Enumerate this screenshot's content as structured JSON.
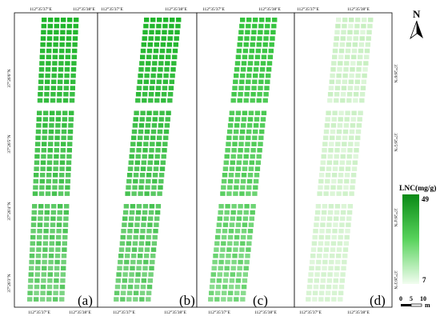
{
  "panels": [
    {
      "label": "(a)",
      "tone": "dark"
    },
    {
      "label": "(b)",
      "tone": "dark"
    },
    {
      "label": "(c)",
      "tone": "mid"
    },
    {
      "label": "(d)",
      "tone": "light"
    }
  ],
  "coords": {
    "lon_left": "112°35'37\"E",
    "lon_right": "112°35'38\"E",
    "lat_labels": [
      "37°26'6\"N",
      "37°26'5\"N",
      "37°26'4\"N",
      "37°26'3\"N"
    ]
  },
  "legend": {
    "title": "LNC(mg/g)",
    "max": "49",
    "min": "7",
    "color_high": "#0a8a16",
    "color_low": "#f2fdf0"
  },
  "scale_bar": {
    "ticks": [
      "0",
      "5",
      "10"
    ],
    "unit": "m"
  },
  "north_arrow": {
    "label": "N"
  },
  "colors": {
    "dark": "#1fb52b",
    "mid": "#35c33e",
    "light": "#c6efbf"
  }
}
